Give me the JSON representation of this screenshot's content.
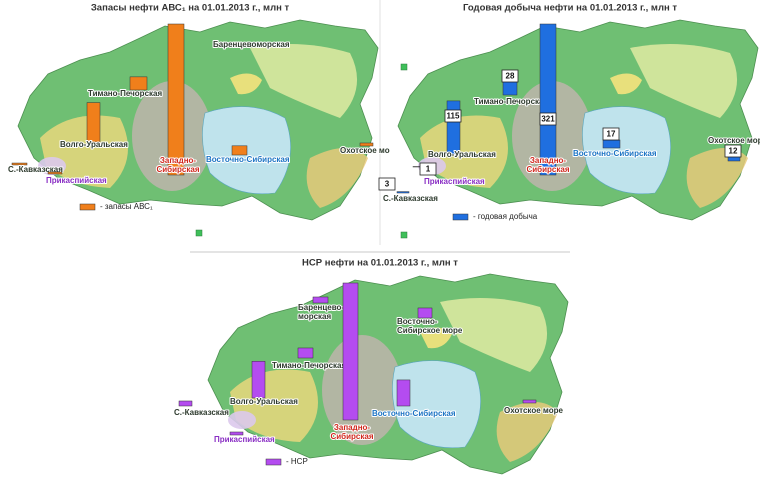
{
  "panels": [
    {
      "title": "Запасы нефти АВС₁  на 01.01.2013 г., млн т",
      "legend": "- запасы АВС₁",
      "color": "#f07f1b",
      "regions": [
        {
          "label": [
            "Баренцевоморская"
          ]
        },
        {
          "label": [
            "Тимано-Печорская"
          ],
          "value": 1000
        },
        {
          "label": [
            "Волго-Уральская"
          ],
          "value": 3000
        },
        {
          "label": [
            "Западно-",
            "Сибирская"
          ],
          "value": 11500
        },
        {
          "label": [
            "Восточно-Сибирская"
          ],
          "value": 700
        },
        {
          "label": [
            "Охотское мо"
          ],
          "value": 230
        },
        {
          "label": [
            "С.-Кавказская"
          ],
          "value": 150
        },
        {
          "label": [
            "Прикаспийская"
          ],
          "value": 150
        }
      ]
    },
    {
      "title": "Годовая добыча нефти на 01.01.2013 г., млн т",
      "legend": "- годовая добыча",
      "color": "#1f6fe0",
      "regions": [
        {
          "label": [
            "Тимано-Печорская"
          ],
          "value": 28
        },
        {
          "label": [
            "Волго-Уральская"
          ],
          "value": 115
        },
        {
          "label": [
            "Прикаспийская"
          ],
          "value": 1
        },
        {
          "label": [
            "С.-Кавказская"
          ],
          "value": 3
        },
        {
          "label": [
            "Западно-",
            "Сибирская"
          ],
          "value": 321
        },
        {
          "label": [
            "Восточно-Сибирская"
          ],
          "value": 17
        },
        {
          "label": [
            "Охотское море"
          ],
          "value": 12
        }
      ]
    },
    {
      "title": "НСР нефти  на 01.01.2013 г., млн т",
      "legend": "- НСР",
      "color": "#b44cf0",
      "regions": [
        {
          "label": [
            "Баренцево-",
            "морская"
          ],
          "value": 1800
        },
        {
          "label": [
            "Восточно-",
            "Сибирское море"
          ],
          "value": 3000
        },
        {
          "label": [
            "Тимано-Печорская"
          ],
          "value": 3000
        },
        {
          "label": [
            "Волго-Уральская"
          ],
          "value": 11000
        },
        {
          "label": [
            "С.-Кавказская"
          ],
          "value": 1500
        },
        {
          "label": [
            "Прикаспийская"
          ],
          "value": 900
        },
        {
          "label": [
            "Западно-",
            "Сибирская"
          ],
          "value": 41000
        },
        {
          "label": [
            "Восточно-Сибирская"
          ],
          "value": 7800
        },
        {
          "label": [
            "Охотское море"
          ],
          "value": 900
        }
      ]
    }
  ]
}
